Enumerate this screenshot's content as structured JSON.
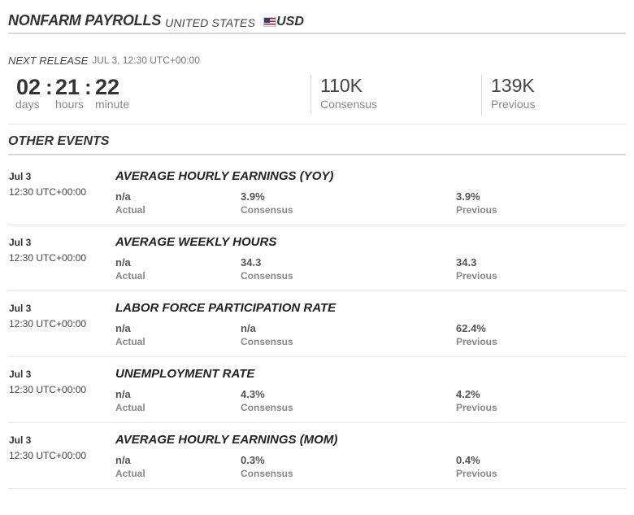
{
  "header": {
    "title": "NONFARM PAYROLLS",
    "country": "UNITED STATES",
    "flag_icon": "us-flag-icon",
    "currency": "USD"
  },
  "next_release": {
    "label": "NEXT RELEASE",
    "datetime": "JUL 3, 12:30 UTC+00:00"
  },
  "countdown": {
    "days": "02",
    "hours": "21",
    "minutes": "22",
    "separator": ":",
    "days_label": "days",
    "hours_label": "hours",
    "minutes_label": "minute"
  },
  "current": {
    "consensus_value": "110K",
    "consensus_label": "Consensus",
    "previous_value": "139K",
    "previous_label": "Previous"
  },
  "other_events": {
    "heading": "OTHER EVENTS",
    "labels": {
      "actual": "Actual",
      "consensus": "Consensus",
      "previous": "Previous"
    },
    "items": [
      {
        "date": "Jul 3",
        "time": "12:30 UTC+00:00",
        "title": "AVERAGE HOURLY EARNINGS (YOY)",
        "actual": "n/a",
        "consensus": "3.9%",
        "previous": "3.9%"
      },
      {
        "date": "Jul 3",
        "time": "12:30 UTC+00:00",
        "title": "AVERAGE WEEKLY HOURS",
        "actual": "n/a",
        "consensus": "34.3",
        "previous": "34.3"
      },
      {
        "date": "Jul 3",
        "time": "12:30 UTC+00:00",
        "title": "LABOR FORCE PARTICIPATION RATE",
        "actual": "n/a",
        "consensus": "n/a",
        "previous": "62.4%"
      },
      {
        "date": "Jul 3",
        "time": "12:30 UTC+00:00",
        "title": "UNEMPLOYMENT RATE",
        "actual": "n/a",
        "consensus": "4.3%",
        "previous": "4.2%"
      },
      {
        "date": "Jul 3",
        "time": "12:30 UTC+00:00",
        "title": "AVERAGE HOURLY EARNINGS (MOM)",
        "actual": "n/a",
        "consensus": "0.3%",
        "previous": "0.4%"
      }
    ]
  }
}
